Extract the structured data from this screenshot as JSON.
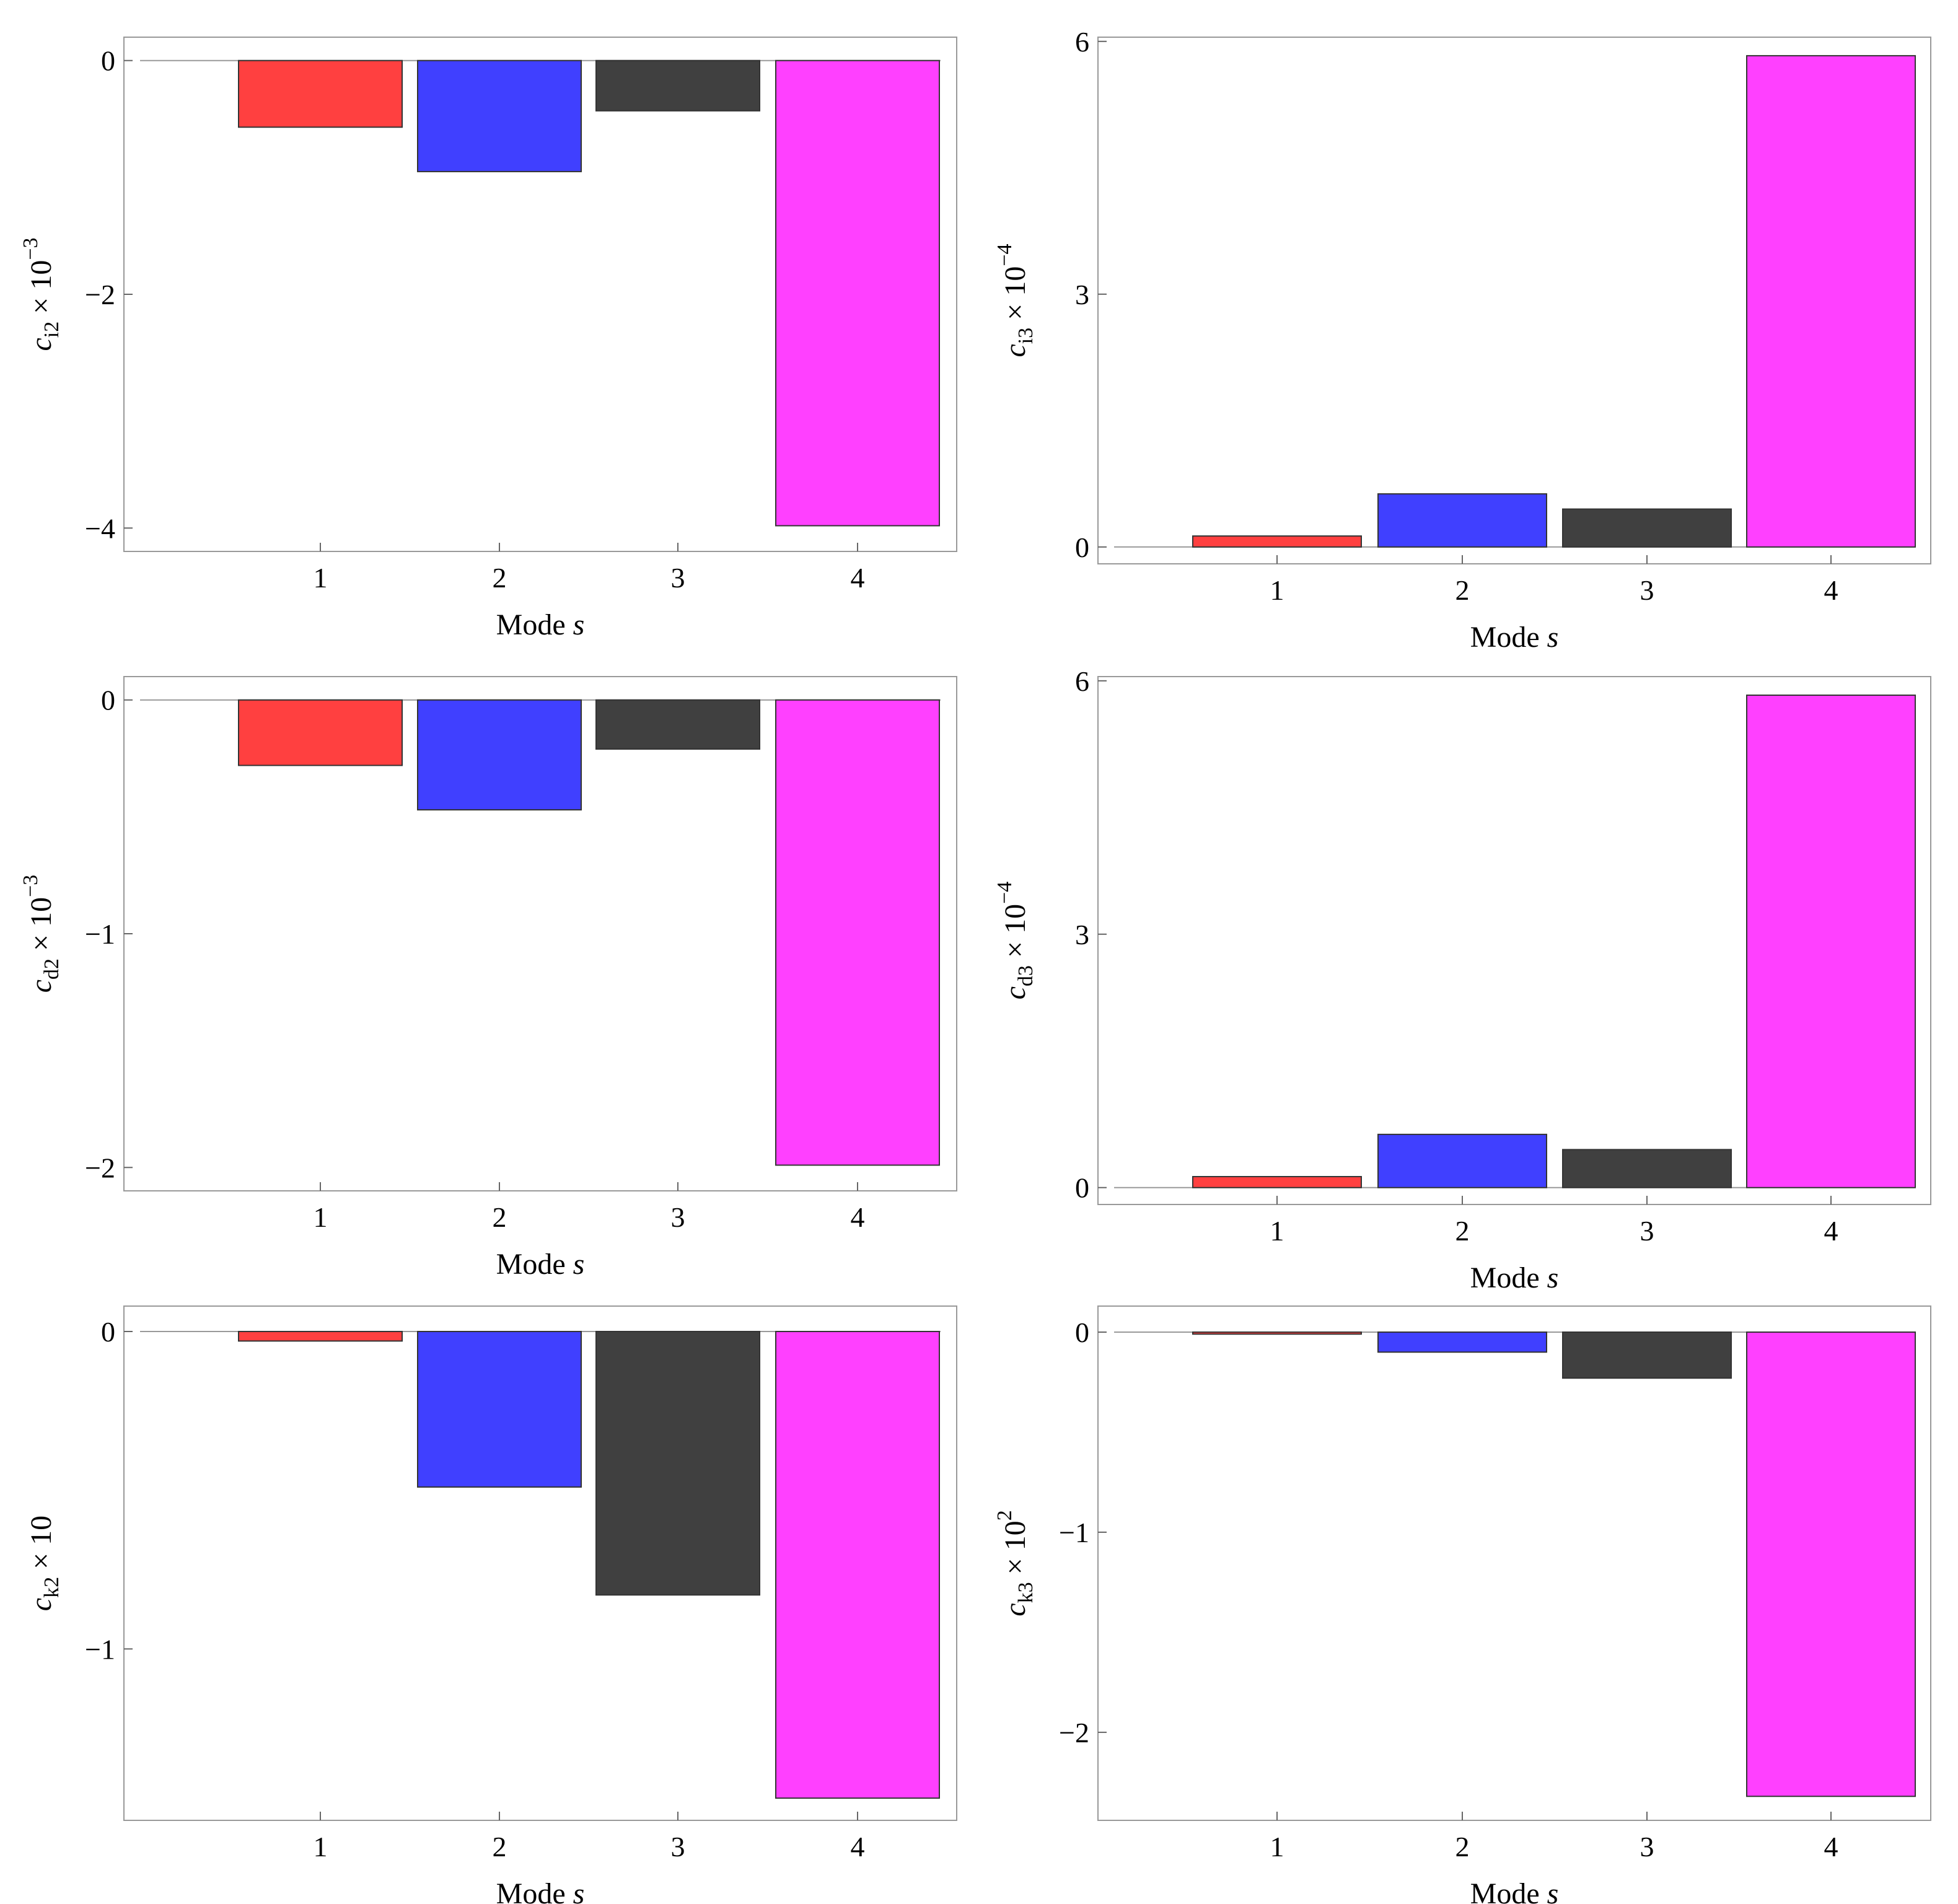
{
  "chart_data": [
    {
      "id": "ci2",
      "type": "bar",
      "categories": [
        "1",
        "2",
        "3",
        "4"
      ],
      "values": [
        -0.57,
        -0.95,
        -0.43,
        -3.98
      ],
      "colors": [
        "#ff4040",
        "#4040ff",
        "#404040",
        "#ff40ff"
      ],
      "ylim": [
        -4.2,
        0.2
      ],
      "yticks": [
        0,
        -2,
        -4
      ],
      "xlabel_main": "Mode ",
      "xlabel_var": "s",
      "ylabel": {
        "var": "c",
        "sub": "i2",
        "rest": " × 10",
        "sup": "−3"
      }
    },
    {
      "id": "ci3",
      "type": "bar",
      "categories": [
        "1",
        "2",
        "3",
        "4"
      ],
      "values": [
        0.13,
        0.63,
        0.45,
        5.83
      ],
      "colors": [
        "#ff4040",
        "#4040ff",
        "#404040",
        "#ff40ff"
      ],
      "ylim": [
        -0.2,
        6.05
      ],
      "yticks": [
        0,
        3,
        6
      ],
      "xlabel_main": "Mode ",
      "xlabel_var": "s",
      "ylabel": {
        "var": "c",
        "sub": "i3",
        "rest": " × 10",
        "sup": "−4"
      }
    },
    {
      "id": "cd2",
      "type": "bar",
      "categories": [
        "1",
        "2",
        "3",
        "4"
      ],
      "values": [
        -0.28,
        -0.47,
        -0.21,
        -1.99
      ],
      "colors": [
        "#ff4040",
        "#4040ff",
        "#404040",
        "#ff40ff"
      ],
      "ylim": [
        -2.1,
        0.1
      ],
      "yticks": [
        0,
        -1,
        -2
      ],
      "xlabel_main": "Mode ",
      "xlabel_var": "s",
      "ylabel": {
        "var": "c",
        "sub": "d2",
        "rest": " × 10",
        "sup": "−3"
      }
    },
    {
      "id": "cd3",
      "type": "bar",
      "categories": [
        "1",
        "2",
        "3",
        "4"
      ],
      "values": [
        0.13,
        0.63,
        0.45,
        5.83
      ],
      "colors": [
        "#ff4040",
        "#4040ff",
        "#404040",
        "#ff40ff"
      ],
      "ylim": [
        -0.2,
        6.05
      ],
      "yticks": [
        0,
        3,
        6
      ],
      "xlabel_main": "Mode ",
      "xlabel_var": "s",
      "ylabel": {
        "var": "c",
        "sub": "d3",
        "rest": " × 10",
        "sup": "−4"
      }
    },
    {
      "id": "ck2",
      "type": "bar",
      "categories": [
        "1",
        "2",
        "3",
        "4"
      ],
      "values": [
        -0.03,
        -0.49,
        -0.83,
        -1.47
      ],
      "colors": [
        "#ff4040",
        "#4040ff",
        "#404040",
        "#ff40ff"
      ],
      "ylim": [
        -1.54,
        0.08
      ],
      "yticks": [
        0,
        -1
      ],
      "xlabel_main": "Mode ",
      "xlabel_var": "s",
      "ylabel": {
        "var": "c",
        "sub": "k2",
        "rest": " × 10",
        "sup": ""
      }
    },
    {
      "id": "ck3",
      "type": "bar",
      "categories": [
        "1",
        "2",
        "3",
        "4"
      ],
      "values": [
        -0.01,
        -0.1,
        -0.23,
        -2.32
      ],
      "colors": [
        "#ff4040",
        "#4040ff",
        "#404040",
        "#ff40ff"
      ],
      "ylim": [
        -2.44,
        0.13
      ],
      "yticks": [
        0,
        -1,
        -2
      ],
      "xlabel_main": "Mode ",
      "xlabel_var": "s",
      "ylabel": {
        "var": "c",
        "sub": "k3",
        "rest": " × 10",
        "sup": "2"
      }
    }
  ]
}
